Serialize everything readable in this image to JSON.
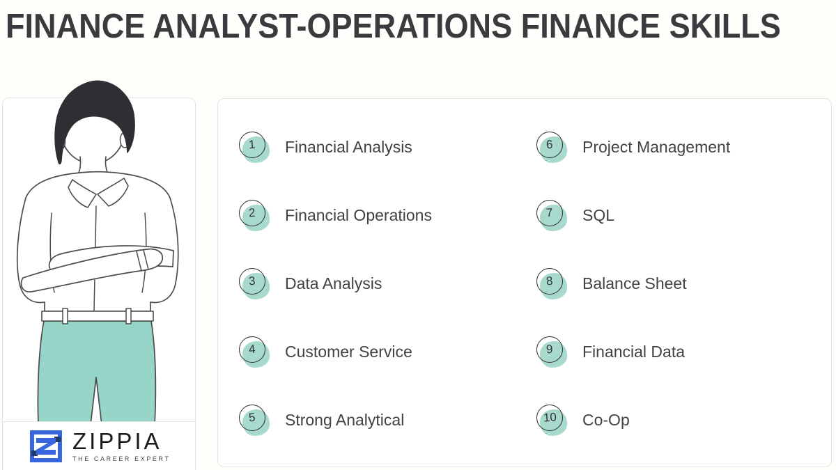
{
  "title": "FINANCE ANALYST-OPERATIONS FINANCE SKILLS",
  "skills": [
    {
      "number": "1",
      "label": "Financial Analysis"
    },
    {
      "number": "2",
      "label": "Financial Operations"
    },
    {
      "number": "3",
      "label": "Data Analysis"
    },
    {
      "number": "4",
      "label": "Customer Service"
    },
    {
      "number": "5",
      "label": "Strong Analytical"
    },
    {
      "number": "6",
      "label": "Project Management"
    },
    {
      "number": "7",
      "label": "SQL"
    },
    {
      "number": "8",
      "label": "Balance Sheet"
    },
    {
      "number": "9",
      "label": "Financial Data"
    },
    {
      "number": "10",
      "label": "Co-Op"
    }
  ],
  "logo": {
    "brand": "ZIPPIA",
    "tagline": "THE CAREER EXPERT",
    "icon": "zippia-z-icon"
  },
  "illustration": "man-with-arms-crossed",
  "colors": {
    "accent_teal": "#a7dacd",
    "pants_teal": "#96d5c8",
    "logo_blue": "#3866de",
    "logo_navy": "#243a66",
    "title_color": "#3a3b3e",
    "text_color": "#414244",
    "hair_color": "#2f2f33"
  }
}
